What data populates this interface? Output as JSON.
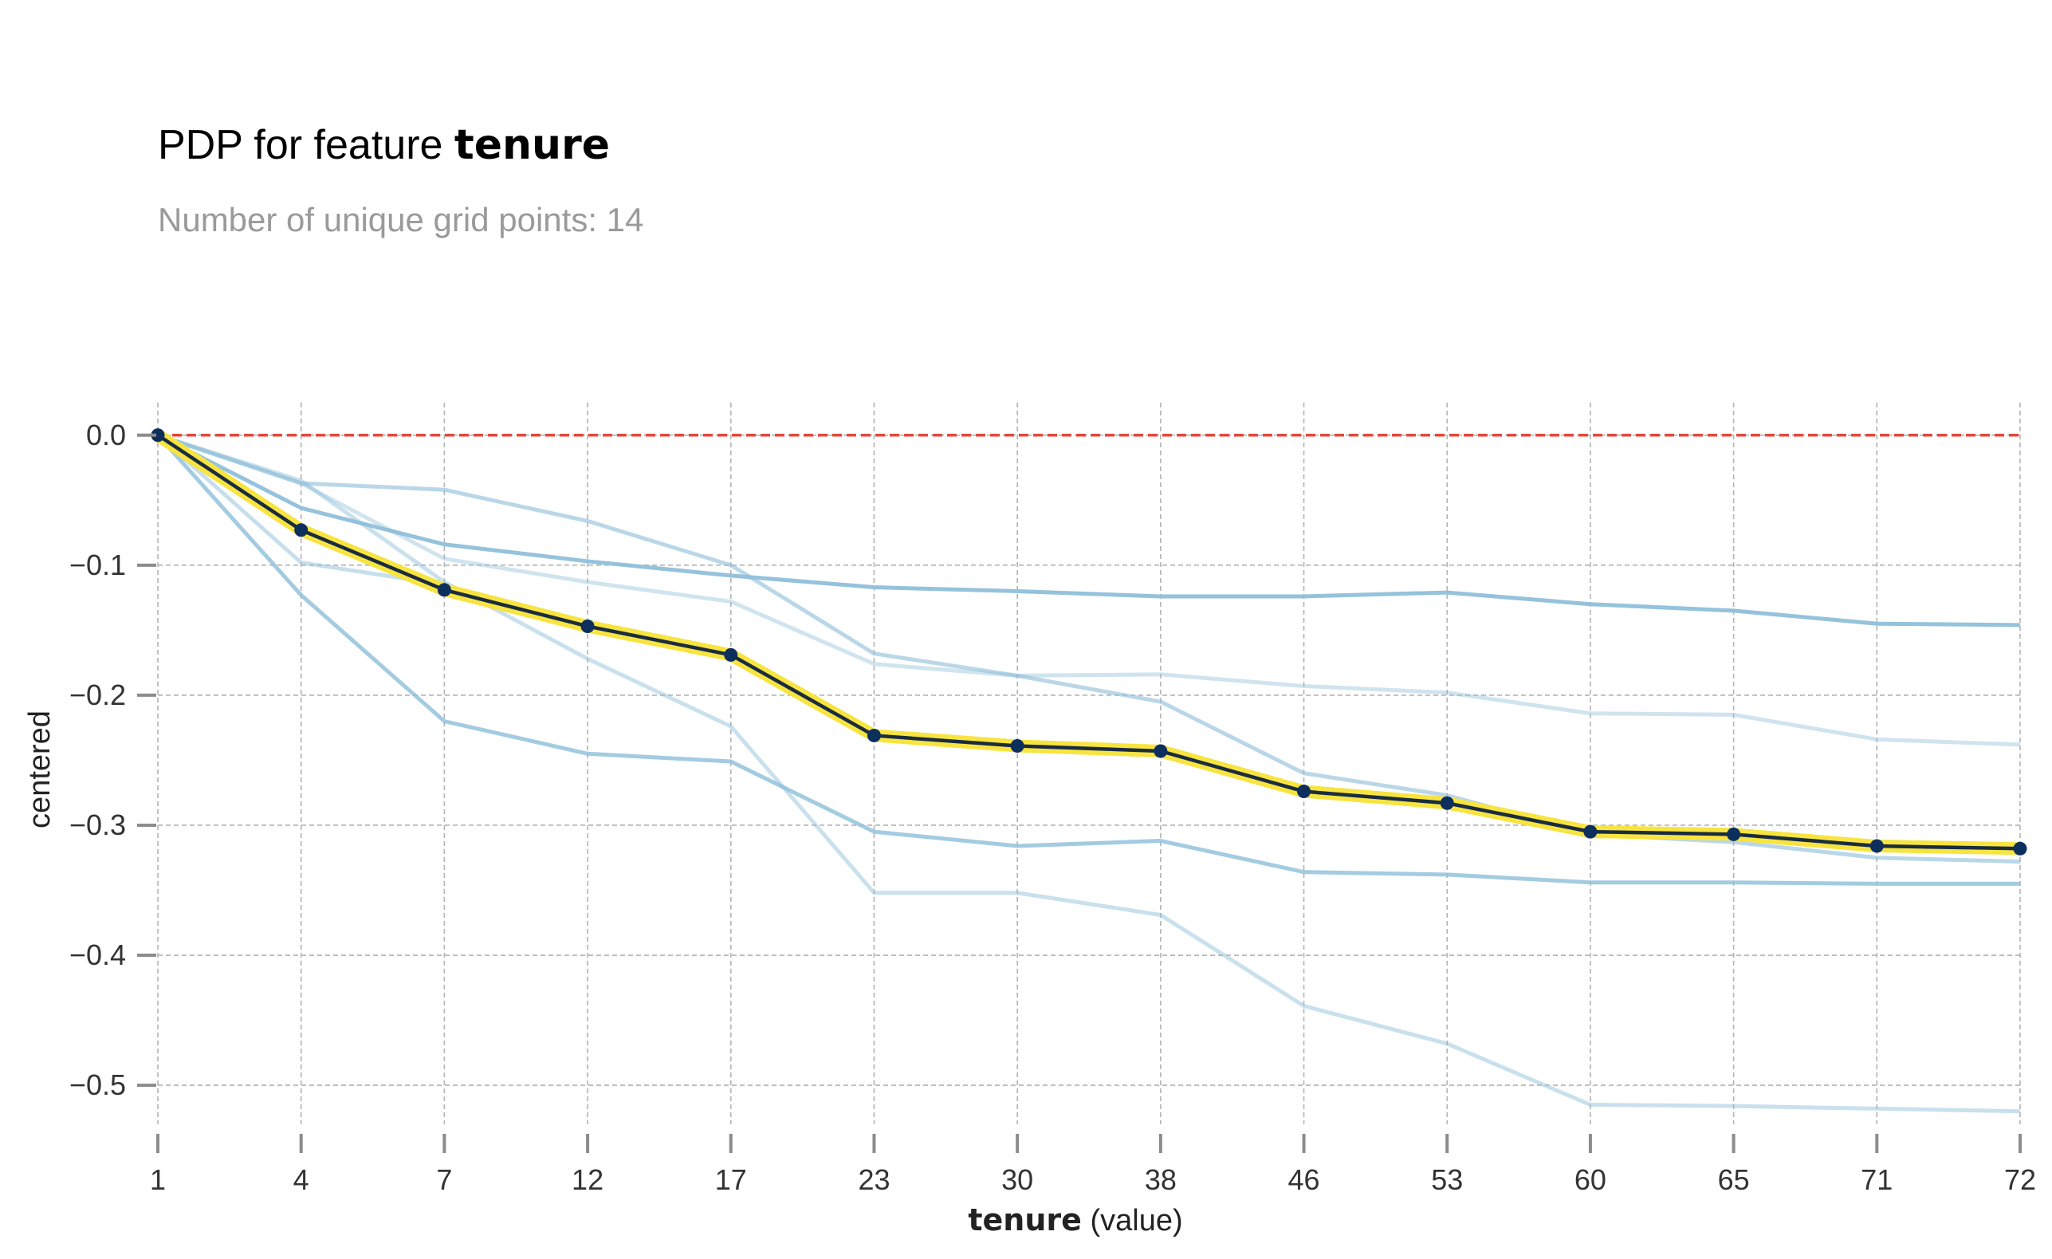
{
  "title_prefix": "PDP for feature ",
  "title_feature": "tenure",
  "subtitle": "Number of unique grid points: 14",
  "chart_data": {
    "type": "line",
    "title": "PDP for feature tenure",
    "subtitle": "Number of unique grid points: 14",
    "xlabel_bold": "tenure",
    "xlabel_suffix": " (value)",
    "ylabel": "centered",
    "x": [
      "1",
      "4",
      "7",
      "12",
      "17",
      "23",
      "30",
      "38",
      "46",
      "53",
      "60",
      "65",
      "71",
      "72"
    ],
    "yticks": [
      0.0,
      -0.1,
      -0.2,
      -0.3,
      -0.4,
      -0.5
    ],
    "ytick_labels": [
      "0.0",
      "−0.1",
      "−0.2",
      "−0.3",
      "−0.4",
      "−0.5"
    ],
    "ylim": [
      -0.53,
      0.025
    ],
    "grid": true,
    "reference_line": 0.0,
    "colors": {
      "reference": "#e8473a",
      "pdp_line": "#1a2c3f",
      "pdp_band": "#f7e440",
      "pdp_marker": "#0d2f5e",
      "ice": "#8fbfda",
      "grid": "#b3b3b3",
      "tick_mark": "#8c8c8c"
    },
    "series": [
      {
        "values": [
          0,
          -0.037,
          -0.042,
          -0.066,
          -0.1,
          -0.168,
          -0.185,
          -0.205,
          -0.26,
          -0.277,
          -0.307,
          -0.313,
          -0.325,
          -0.328
        ],
        "opacity": 0.62
      },
      {
        "values": [
          0,
          -0.056,
          -0.084,
          -0.097,
          -0.108,
          -0.117,
          -0.12,
          -0.124,
          -0.124,
          -0.121,
          -0.13,
          -0.135,
          -0.145,
          -0.146
        ],
        "opacity": 0.95
      },
      {
        "values": [
          0,
          -0.037,
          -0.095,
          -0.113,
          -0.128,
          -0.176,
          -0.185,
          -0.184,
          -0.193,
          -0.198,
          -0.214,
          -0.215,
          -0.234,
          -0.238
        ],
        "opacity": 0.42
      },
      {
        "values": [
          0,
          -0.123,
          -0.22,
          -0.245,
          -0.251,
          -0.305,
          -0.316,
          -0.312,
          -0.336,
          -0.338,
          -0.344,
          -0.344,
          -0.345,
          -0.345
        ],
        "opacity": 0.82
      },
      {
        "values": [
          0,
          -0.035,
          -0.113,
          -0.172,
          -0.224,
          -0.352,
          -0.352,
          -0.369,
          -0.439,
          -0.468,
          -0.515,
          -0.516,
          -0.518,
          -0.52
        ],
        "opacity": 0.48
      },
      {
        "values": [
          0,
          -0.098,
          -0.115,
          -0.15,
          -0.17,
          -0.232,
          -0.237,
          -0.242,
          -0.272,
          -0.282,
          -0.302,
          -0.305,
          -0.315,
          -0.316
        ],
        "opacity": 0.5
      }
    ],
    "pdp": {
      "values": [
        0,
        -0.073,
        -0.119,
        -0.147,
        -0.169,
        -0.231,
        -0.239,
        -0.243,
        -0.274,
        -0.283,
        -0.305,
        -0.307,
        -0.316,
        -0.318
      ]
    }
  }
}
